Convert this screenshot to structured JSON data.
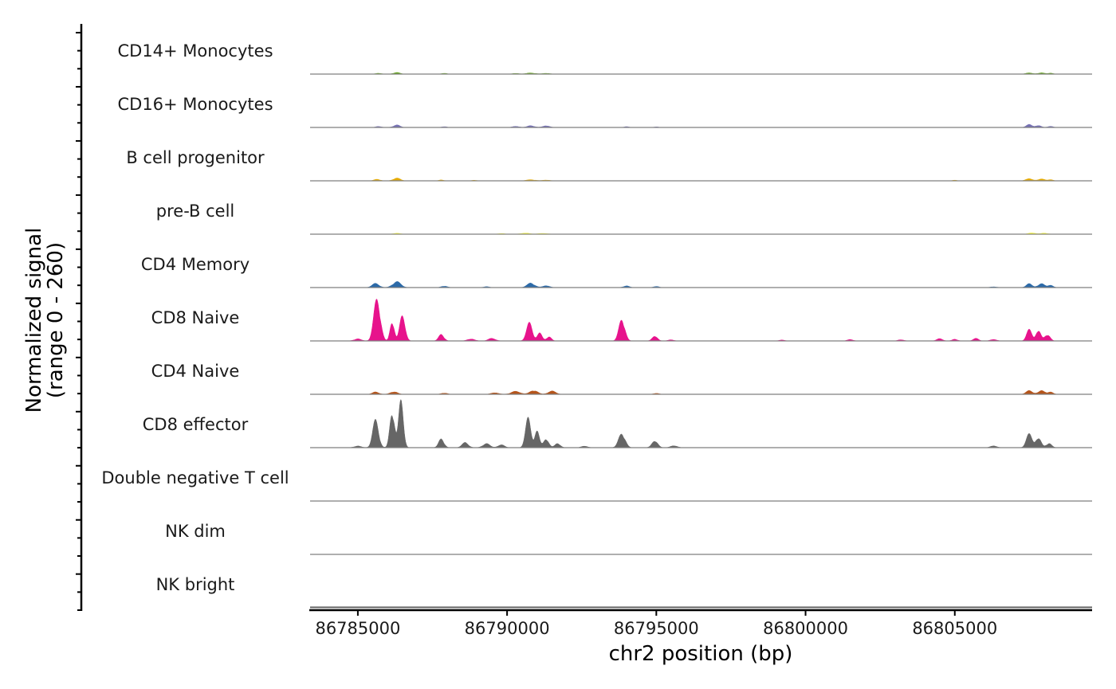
{
  "chart_data": {
    "type": "area",
    "ylabel": [
      "Normalized signal",
      "(range 0 - 260)"
    ],
    "xlabel": "chr2 position (bp)",
    "xlim": [
      86783400,
      86809600
    ],
    "ylim": [
      0,
      260
    ],
    "x_ticks": [
      86785000,
      86790000,
      86795000,
      86800000,
      86805000
    ],
    "x_tick_labels": [
      "86785000",
      "86790000",
      "86795000",
      "86800000",
      "86805000"
    ],
    "tracks": [
      {
        "name": "CD14+ Monocytes",
        "color": "#66a61e",
        "peaks": [
          [
            86785700,
            4,
            90
          ],
          [
            86786300,
            7,
            110
          ],
          [
            86787900,
            4,
            80
          ],
          [
            86790300,
            3,
            120
          ],
          [
            86790800,
            5,
            150
          ],
          [
            86791300,
            4,
            120
          ],
          [
            86807500,
            5,
            120
          ],
          [
            86807900,
            6,
            110
          ],
          [
            86808200,
            4,
            90
          ]
        ]
      },
      {
        "name": "CD16+ Monocytes",
        "color": "#7570b3",
        "peaks": [
          [
            86785700,
            5,
            90
          ],
          [
            86786300,
            11,
            110
          ],
          [
            86787900,
            4,
            80
          ],
          [
            86790300,
            5,
            120
          ],
          [
            86790800,
            8,
            120
          ],
          [
            86791300,
            9,
            110
          ],
          [
            86794000,
            4,
            80
          ],
          [
            86795000,
            3,
            80
          ],
          [
            86807500,
            13,
            100
          ],
          [
            86807800,
            10,
            90
          ],
          [
            86808200,
            5,
            90
          ]
        ]
      },
      {
        "name": "B cell progenitor",
        "color": "#e6ab02",
        "peaks": [
          [
            86785650,
            7,
            100
          ],
          [
            86786300,
            12,
            120
          ],
          [
            86787800,
            4,
            80
          ],
          [
            86788900,
            3,
            80
          ],
          [
            86790800,
            5,
            150
          ],
          [
            86791300,
            4,
            120
          ],
          [
            86805000,
            3,
            80
          ],
          [
            86807500,
            9,
            120
          ],
          [
            86807900,
            9,
            110
          ],
          [
            86808200,
            5,
            90
          ]
        ]
      },
      {
        "name": "pre-B cell",
        "color": "#ffff33",
        "peaks": [
          [
            86786300,
            4,
            120
          ],
          [
            86789800,
            3,
            120
          ],
          [
            86790600,
            5,
            150
          ],
          [
            86791200,
            4,
            150
          ],
          [
            86807600,
            6,
            120
          ],
          [
            86808000,
            5,
            110
          ]
        ]
      },
      {
        "name": "CD4 Memory",
        "color": "#2c6aa8",
        "peaks": [
          [
            86785600,
            18,
            120
          ],
          [
            86786300,
            26,
            140
          ],
          [
            86787900,
            7,
            100
          ],
          [
            86789300,
            4,
            100
          ],
          [
            86790800,
            20,
            130
          ],
          [
            86791300,
            10,
            110
          ],
          [
            86794000,
            8,
            100
          ],
          [
            86795000,
            6,
            90
          ],
          [
            86806300,
            4,
            100
          ],
          [
            86807500,
            17,
            100
          ],
          [
            86807900,
            19,
            110
          ],
          [
            86808200,
            10,
            90
          ]
        ]
      },
      {
        "name": "CD8 Naive",
        "color": "#e7138c",
        "peaks": [
          [
            86785000,
            10,
            120
          ],
          [
            86785650,
            190,
            110
          ],
          [
            86786150,
            95,
            70
          ],
          [
            86786500,
            120,
            90
          ],
          [
            86787800,
            30,
            90
          ],
          [
            86788800,
            10,
            120
          ],
          [
            86789500,
            12,
            120
          ],
          [
            86790750,
            80,
            100
          ],
          [
            86791100,
            40,
            80
          ],
          [
            86791400,
            20,
            80
          ],
          [
            86793850,
            100,
            100
          ],
          [
            86794950,
            25,
            90
          ],
          [
            86795500,
            5,
            100
          ],
          [
            86799200,
            4,
            100
          ],
          [
            86801500,
            6,
            100
          ],
          [
            86803200,
            6,
            100
          ],
          [
            86804500,
            10,
            100
          ],
          [
            86805000,
            8,
            90
          ],
          [
            86805700,
            12,
            90
          ],
          [
            86806300,
            8,
            100
          ],
          [
            86807500,
            50,
            90
          ],
          [
            86807800,
            55,
            80
          ],
          [
            86808100,
            30,
            90
          ]
        ]
      },
      {
        "name": "CD4 Naive",
        "color": "#b5541a",
        "peaks": [
          [
            86785600,
            10,
            110
          ],
          [
            86786200,
            12,
            120
          ],
          [
            86787900,
            6,
            100
          ],
          [
            86789600,
            8,
            120
          ],
          [
            86790300,
            14,
            150
          ],
          [
            86790900,
            18,
            130
          ],
          [
            86791500,
            14,
            130
          ],
          [
            86795000,
            5,
            90
          ],
          [
            86807500,
            16,
            110
          ],
          [
            86807900,
            18,
            110
          ],
          [
            86808200,
            10,
            90
          ]
        ]
      },
      {
        "name": "CD8 effector",
        "color": "#666666",
        "peaks": [
          [
            86785000,
            8,
            120
          ],
          [
            86785600,
            120,
            100
          ],
          [
            86786150,
            175,
            80
          ],
          [
            86786450,
            210,
            80
          ],
          [
            86787800,
            40,
            90
          ],
          [
            86788600,
            22,
            110
          ],
          [
            86789300,
            18,
            120
          ],
          [
            86789800,
            14,
            110
          ],
          [
            86790700,
            130,
            90
          ],
          [
            86791000,
            80,
            80
          ],
          [
            86791300,
            45,
            90
          ],
          [
            86791700,
            20,
            90
          ],
          [
            86792600,
            8,
            100
          ],
          [
            86793850,
            65,
            110
          ],
          [
            86794950,
            35,
            100
          ],
          [
            86795600,
            10,
            110
          ],
          [
            86806300,
            10,
            100
          ],
          [
            86807500,
            60,
            100
          ],
          [
            86807800,
            50,
            90
          ],
          [
            86808150,
            20,
            90
          ]
        ]
      },
      {
        "name": "Double negative T cell",
        "color": "#999999",
        "peaks": []
      },
      {
        "name": "NK dim",
        "color": "#999999",
        "peaks": []
      },
      {
        "name": "NK bright",
        "color": "#999999",
        "peaks": []
      }
    ]
  }
}
